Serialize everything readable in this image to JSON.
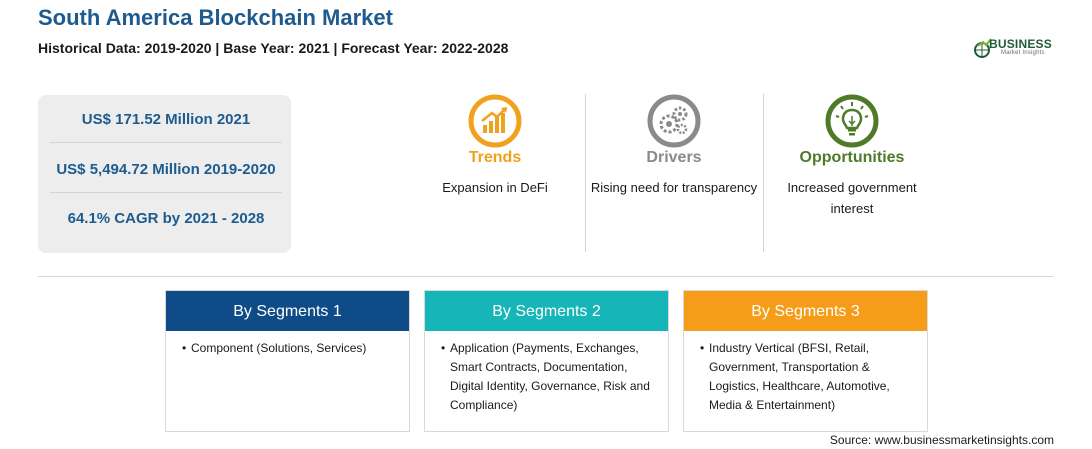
{
  "header": {
    "title": "South America Blockchain Market",
    "subtitle": "Historical Data: 2019-2020 | Base Year: 2021 | Forecast Year: 2022-2028"
  },
  "logo": {
    "word": "BUSINESS",
    "sub": "Market Insights",
    "icon": "globe-growth-icon",
    "color": "#1f5c3a"
  },
  "stats": [
    "US$ 171.52 Million 2021",
    "US$ 5,494.72 Million 2019-2020",
    "64.1% CAGR by 2021 - 2028"
  ],
  "features": [
    {
      "heading": "Trends",
      "text": "Expansion in DeFi",
      "icon": "growth-chart-icon",
      "color": "#f0a21e"
    },
    {
      "heading": "Drivers",
      "text": "Rising need for transparency",
      "icon": "gears-icon",
      "color": "#8a8a8a"
    },
    {
      "heading": "Opportunities",
      "text": "Increased government interest",
      "icon": "lightbulb-icon",
      "color": "#4f7a28"
    }
  ],
  "segments": [
    {
      "title": "By Segments 1",
      "color": "#0f4c87",
      "item": "Component (Solutions, Services)"
    },
    {
      "title": "By Segments 2",
      "color": "#16b5b8",
      "item": "Application (Payments, Exchanges, Smart Contracts, Documentation, Digital Identity, Governance, Risk and Compliance)"
    },
    {
      "title": "By Segments 3",
      "color": "#f59d18",
      "item": "Industry Vertical (BFSI, Retail, Government, Transportation & Logistics, Healthcare, Automotive, Media & Entertainment)"
    }
  ],
  "source": "Source: www.businessmarketinsights.com"
}
